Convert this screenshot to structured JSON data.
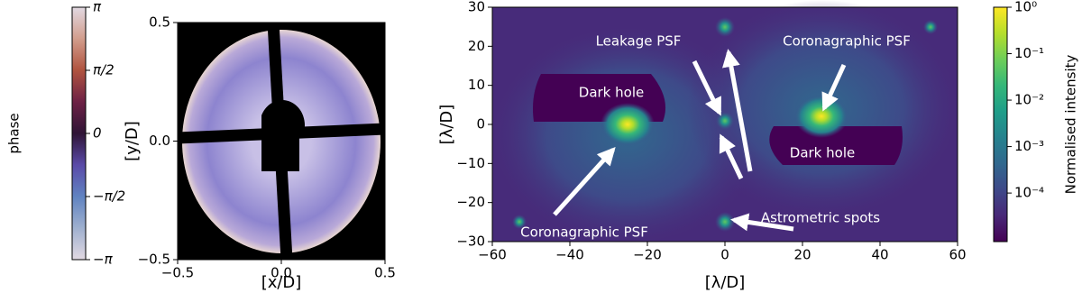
{
  "chart_data": [
    {
      "type": "colorbar",
      "label": "phase",
      "colormap": "twilight",
      "yscale": "linear",
      "ylim": [
        -3.14159,
        3.14159
      ],
      "yticks": [
        {
          "value": -3.14159,
          "label": "−π"
        },
        {
          "value": -1.5708,
          "label": "−π/2"
        },
        0,
        {
          "value": 1.5708,
          "label": "π/2"
        },
        {
          "value": 3.14159,
          "label": "π"
        }
      ]
    },
    {
      "type": "image",
      "xlabel": "[x/D]",
      "ylabel": "[y/D]",
      "xlim": [
        -0.5,
        0.5
      ],
      "ylim": [
        -0.5,
        0.5
      ],
      "xticks": [
        {
          "value": -0.5,
          "label": "−0.5"
        },
        {
          "value": 0,
          "label": "0.0"
        },
        0.5
      ],
      "yticks": [
        {
          "value": -0.5,
          "label": "−0.5"
        },
        {
          "value": 0,
          "label": "0.0"
        },
        0.5
      ]
    },
    {
      "type": "image",
      "xlabel": "[λ/D]",
      "ylabel": "[λ/D]",
      "xlim": [
        -60,
        60
      ],
      "ylim": [
        -30,
        30
      ],
      "xticks": [
        {
          "value": -60,
          "label": "−60"
        },
        {
          "value": -40,
          "label": "−40"
        },
        {
          "value": -20,
          "label": "−20"
        },
        0,
        20,
        40,
        60
      ],
      "yticks": [
        {
          "value": -30,
          "label": "−30"
        },
        {
          "value": -20,
          "label": "−20"
        },
        {
          "value": -10,
          "label": "−10"
        },
        0,
        10,
        20,
        30
      ],
      "annotations": [
        "Leakage PSF",
        "Coronagraphic PSF",
        "Dark hole",
        "Dark hole",
        "Astrometric spots",
        "Coronagraphic PSF"
      ]
    },
    {
      "type": "colorbar",
      "label": "Normalised intensity",
      "colormap": "viridis",
      "yscale": "log",
      "ylim": [
        9e-06,
        1
      ],
      "yticks": [
        {
          "value": 0.0001,
          "label": "10⁻⁴"
        },
        {
          "value": 0.001,
          "label": "10⁻³"
        },
        {
          "value": 0.01,
          "label": "10⁻²"
        },
        {
          "value": 0.1,
          "label": "10⁻¹"
        },
        {
          "value": 1,
          "label": "10⁰"
        }
      ]
    }
  ]
}
